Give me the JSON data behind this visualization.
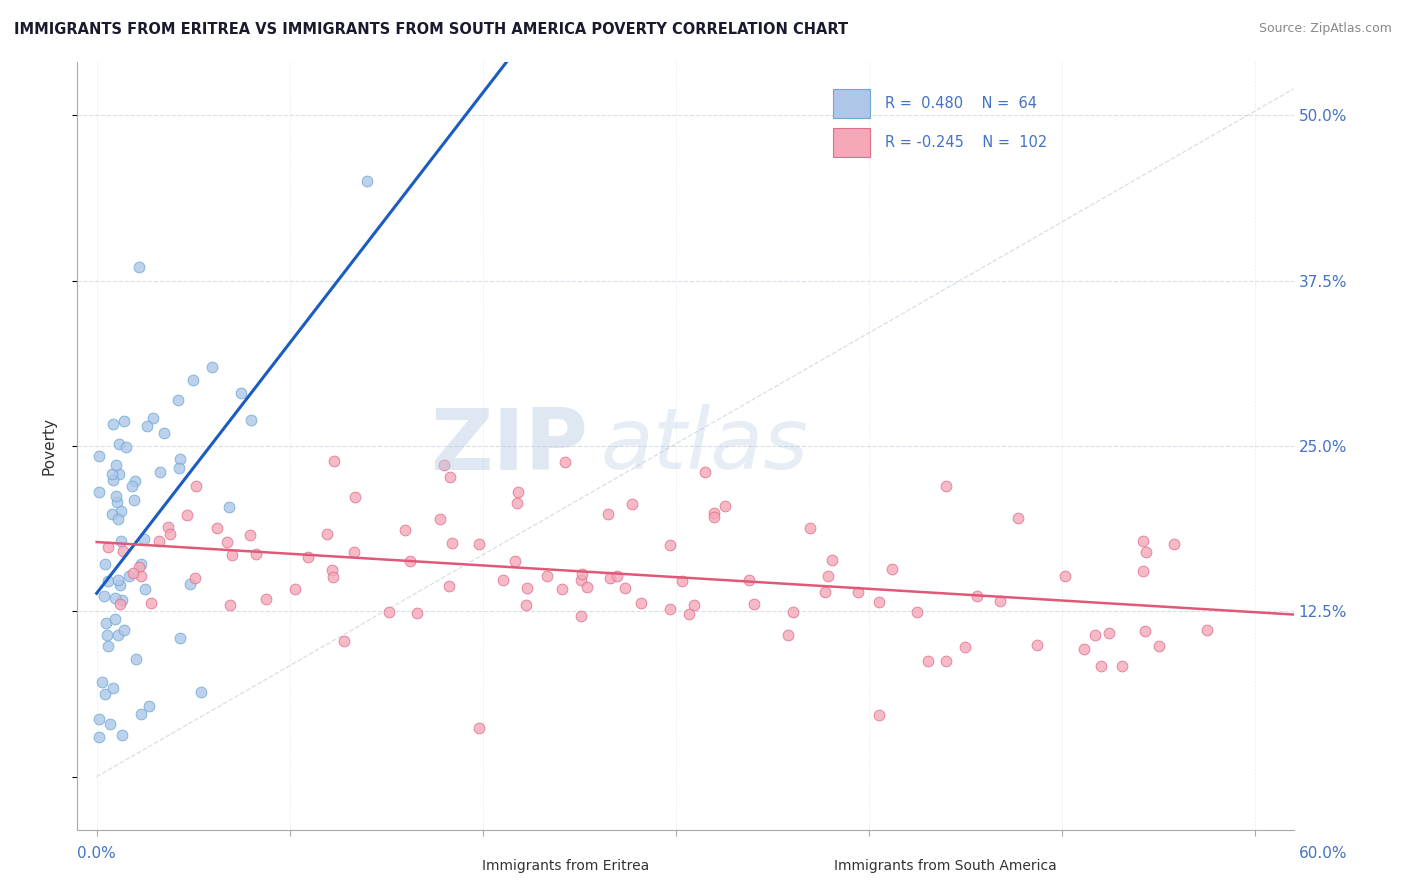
{
  "title": "IMMIGRANTS FROM ERITREA VS IMMIGRANTS FROM SOUTH AMERICA POVERTY CORRELATION CHART",
  "source": "Source: ZipAtlas.com",
  "ylabel": "Poverty",
  "ytick_labels": [
    "",
    "12.5%",
    "25.0%",
    "37.5%",
    "50.0%"
  ],
  "ytick_vals": [
    0.0,
    12.5,
    25.0,
    37.5,
    50.0
  ],
  "xlim": [
    -1.0,
    62.0
  ],
  "ylim": [
    -4.0,
    54.0
  ],
  "series1_color": "#aec6e8",
  "series1_edge": "#6aaad4",
  "series2_color": "#f4a8b8",
  "series2_edge": "#e07090",
  "series1_label": "Immigrants from Eritrea",
  "series2_label": "Immigrants from South America",
  "series1_R": "0.480",
  "series1_N": "64",
  "series2_R": "-0.245",
  "series2_N": "102",
  "trend1_color": "#1a5cbf",
  "trend2_color": "#e05878",
  "watermark_zip": "ZIP",
  "watermark_atlas": "atlas",
  "background_color": "#ffffff",
  "grid_color": "#d8dde8",
  "tick_color": "#4472c4",
  "title_color": "#1a1a2e",
  "label_color": "#333333",
  "source_color": "#888888"
}
